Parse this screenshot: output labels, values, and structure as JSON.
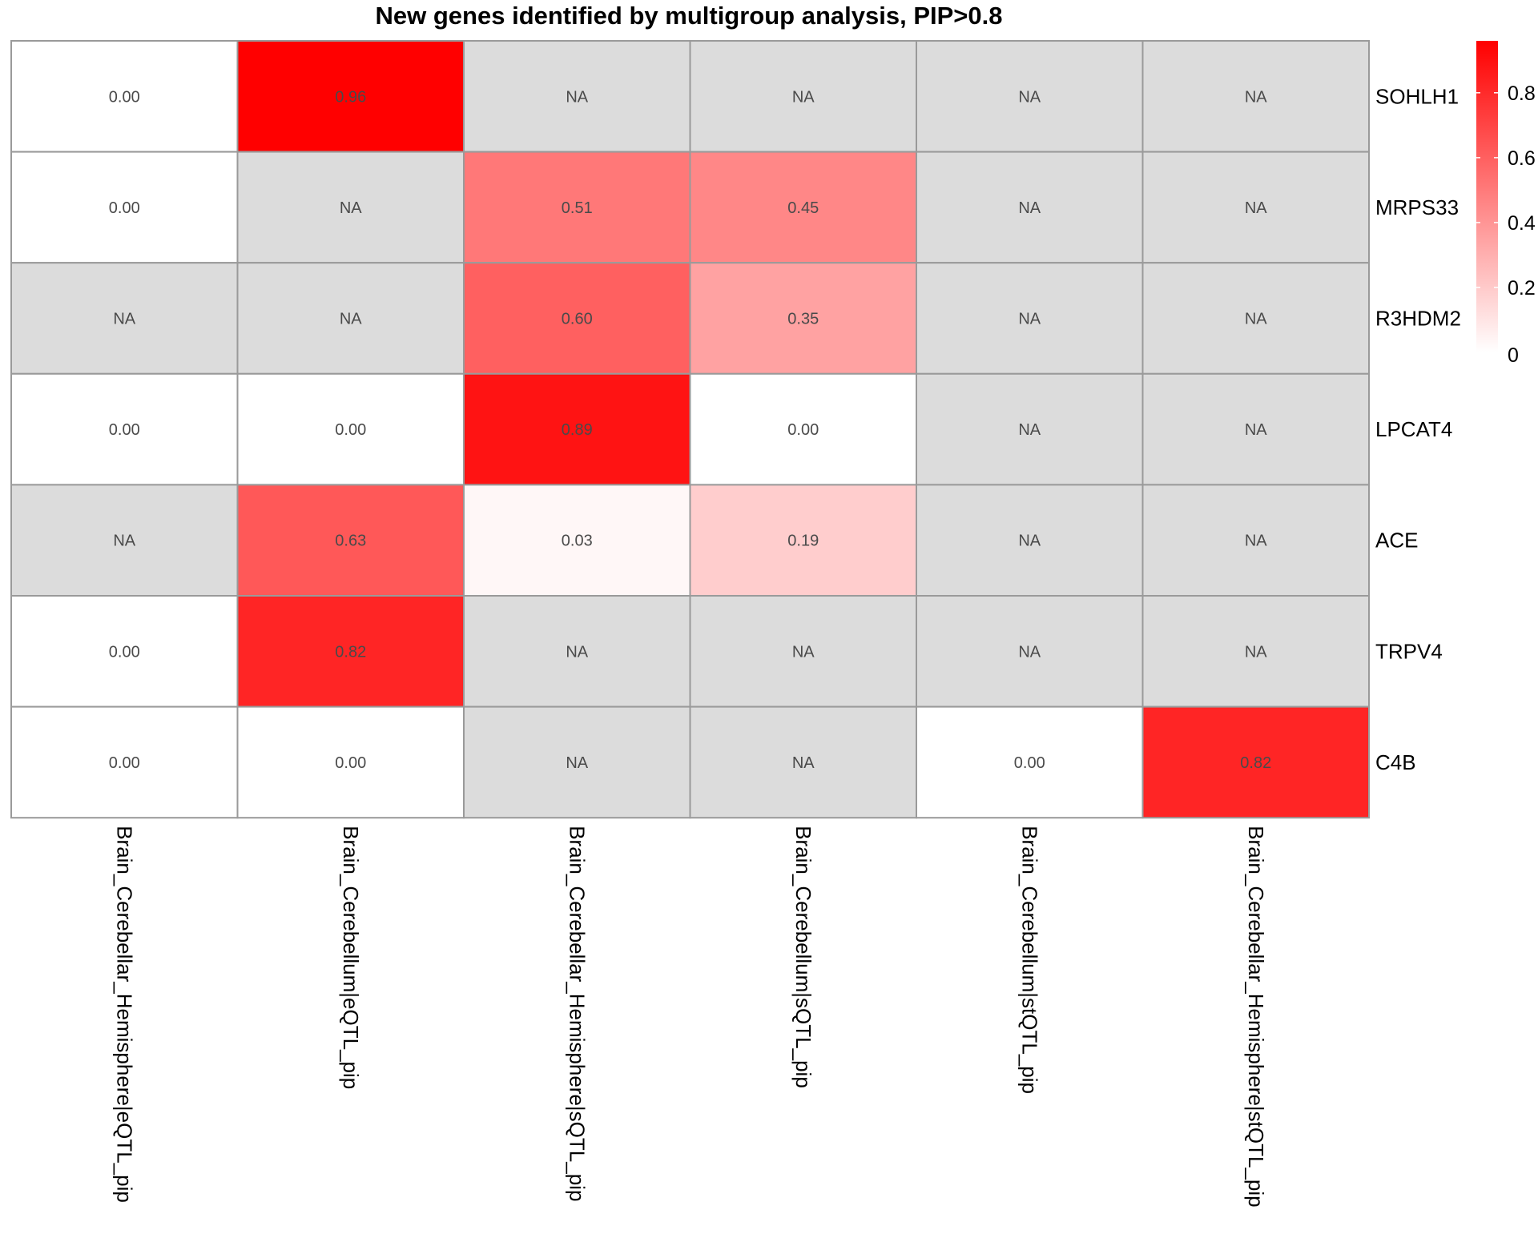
{
  "chart_data": {
    "type": "heatmap",
    "title": "New genes identified by multigroup analysis, PIP>0.8",
    "rows": [
      "SOHLH1",
      "MRPS33",
      "R3HDM2",
      "LPCAT4",
      "ACE",
      "TRPV4",
      "C4B"
    ],
    "columns": [
      "Brain_Cerebellar_Hemisphere|eQTL_pip",
      "Brain_Cerebellum|eQTL_pip",
      "Brain_Cerebellar_Hemisphere|sQTL_pip",
      "Brain_Cerebellum|sQTL_pip",
      "Brain_Cerebellum|stQTL_pip",
      "Brain_Cerebellar_Hemisphere|stQTL_pip"
    ],
    "values": [
      [
        0.0,
        0.96,
        null,
        null,
        null,
        null
      ],
      [
        0.0,
        null,
        0.51,
        0.45,
        null,
        null
      ],
      [
        null,
        null,
        0.6,
        0.35,
        null,
        null
      ],
      [
        0.0,
        0.0,
        0.89,
        0.0,
        null,
        null
      ],
      [
        null,
        0.63,
        0.03,
        0.19,
        null,
        null
      ],
      [
        0.0,
        0.82,
        null,
        null,
        null,
        null
      ],
      [
        0.0,
        0.0,
        null,
        null,
        0.0,
        0.82
      ]
    ],
    "na_label": "NA",
    "color_scale": {
      "low": "#ffffff",
      "high": "#ff0000",
      "na_color": "#dcdcdc",
      "min": 0,
      "max": 0.96
    },
    "legend": {
      "ticks": [
        0,
        0.2,
        0.4,
        0.6,
        0.8
      ],
      "tick_labels": [
        "0",
        "0.2",
        "0.4",
        "0.6",
        "0.8"
      ],
      "position": "right"
    },
    "grid": true
  }
}
